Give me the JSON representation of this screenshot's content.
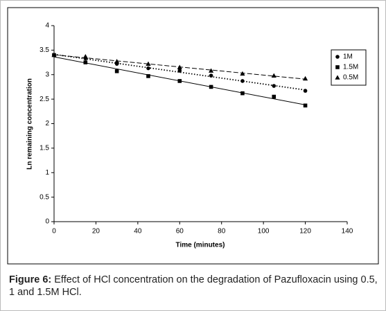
{
  "chart_data": {
    "type": "scatter",
    "xlabel": "Time (minutes)",
    "ylabel": "Ln remaining concentration",
    "x": [
      0,
      15,
      30,
      45,
      60,
      75,
      90,
      105,
      120
    ],
    "series": [
      {
        "name": "1M",
        "color": "#000000",
        "marker": "circle",
        "trendline": "dotted",
        "values": [
          3.4,
          3.33,
          3.22,
          3.13,
          3.08,
          2.98,
          2.87,
          2.77,
          2.67
        ]
      },
      {
        "name": "1.5M",
        "color": "#000000",
        "marker": "square",
        "trendline": "solid",
        "values": [
          3.4,
          3.25,
          3.07,
          2.97,
          2.87,
          2.75,
          2.62,
          2.55,
          2.37
        ]
      },
      {
        "name": "0.5M",
        "color": "#000000",
        "marker": "triangle",
        "trendline": "dashed",
        "values": [
          3.4,
          3.37,
          3.27,
          3.22,
          3.15,
          3.08,
          3.02,
          2.98,
          2.92
        ]
      }
    ],
    "xlim": [
      0,
      140
    ],
    "xticks": [
      0,
      20,
      40,
      60,
      80,
      100,
      120,
      140
    ],
    "ylim": [
      0,
      4
    ],
    "yticks": [
      0,
      0.5,
      1,
      1.5,
      2,
      2.5,
      3,
      3.5,
      4
    ],
    "legend": "right"
  },
  "caption": {
    "label": "Figure 6:",
    "text": "Effect of HCl concentration on the degradation of Pazufloxacin using 0.5, 1 and 1.5M HCl."
  }
}
